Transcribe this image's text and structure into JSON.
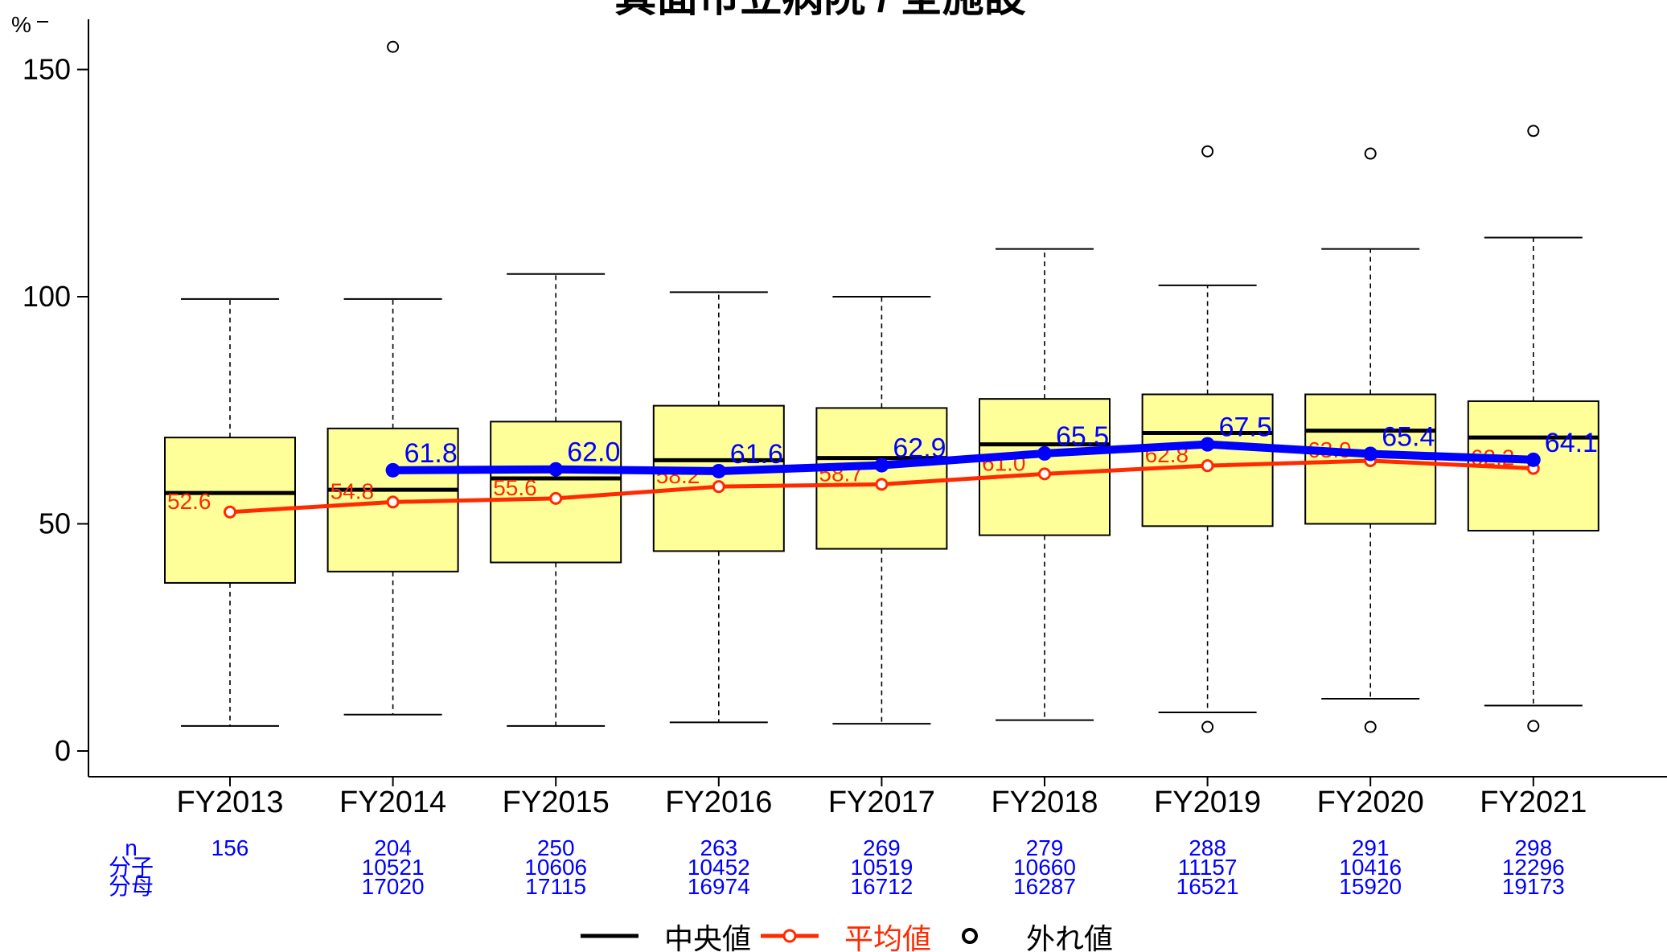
{
  "chart_data": {
    "type": "box",
    "title": "箕面市立病院 / 全施設",
    "ylabel": "%",
    "ylim": [
      -5,
      160
    ],
    "yticks": [
      0,
      50,
      100,
      150
    ],
    "grid": false,
    "legend_position": "bottom",
    "categories": [
      "FY2013",
      "FY2014",
      "FY2015",
      "FY2016",
      "FY2017",
      "FY2018",
      "FY2019",
      "FY2020",
      "FY2021"
    ],
    "boxes": [
      {
        "q1": 37.0,
        "median": 56.8,
        "q3": 69.0,
        "whisker_low": 5.5,
        "whisker_high": 99.5,
        "outliers": []
      },
      {
        "q1": 39.5,
        "median": 57.5,
        "q3": 71.0,
        "whisker_low": 8.0,
        "whisker_high": 99.5,
        "outliers": [
          155.0
        ]
      },
      {
        "q1": 41.5,
        "median": 60.0,
        "q3": 72.5,
        "whisker_low": 5.5,
        "whisker_high": 105.0,
        "outliers": []
      },
      {
        "q1": 44.0,
        "median": 64.0,
        "q3": 76.0,
        "whisker_low": 6.3,
        "whisker_high": 101.0,
        "outliers": []
      },
      {
        "q1": 44.5,
        "median": 64.5,
        "q3": 75.5,
        "whisker_low": 6.0,
        "whisker_high": 100.0,
        "outliers": []
      },
      {
        "q1": 47.5,
        "median": 67.5,
        "q3": 77.5,
        "whisker_low": 6.8,
        "whisker_high": 110.5,
        "outliers": []
      },
      {
        "q1": 49.5,
        "median": 70.0,
        "q3": 78.5,
        "whisker_low": 8.5,
        "whisker_high": 102.5,
        "outliers": [
          132.0,
          5.3
        ]
      },
      {
        "q1": 50.0,
        "median": 70.5,
        "q3": 78.5,
        "whisker_low": 11.5,
        "whisker_high": 110.5,
        "outliers": [
          131.5,
          5.3
        ]
      },
      {
        "q1": 48.5,
        "median": 69.0,
        "q3": 77.0,
        "whisker_low": 10.0,
        "whisker_high": 113.0,
        "outliers": [
          136.5,
          5.5
        ]
      }
    ],
    "series": [
      {
        "name": "平均値",
        "color": "#ff2a00",
        "values": [
          52.6,
          54.8,
          55.6,
          58.2,
          58.7,
          61.0,
          62.8,
          63.9,
          62.2
        ],
        "labels": [
          "52.6",
          "54.8",
          "55.6",
          "58.2",
          "58.7",
          "61.0",
          "62.8",
          "63.9",
          "62.2"
        ]
      },
      {
        "name": "",
        "color": "#0000ff",
        "values": [
          null,
          61.8,
          62.0,
          61.6,
          62.9,
          65.5,
          67.5,
          65.4,
          64.1
        ],
        "labels": [
          "",
          "61.8",
          "62.0",
          "61.6",
          "62.9",
          "65.5",
          "67.5",
          "65.4",
          "64.1"
        ]
      }
    ],
    "table": {
      "row_labels": [
        "n",
        "分子",
        "分母"
      ],
      "columns": [
        {
          "n": "156",
          "numerator": "",
          "denominator": ""
        },
        {
          "n": "204",
          "numerator": "10521",
          "denominator": "17020"
        },
        {
          "n": "250",
          "numerator": "10606",
          "denominator": "17115"
        },
        {
          "n": "263",
          "numerator": "10452",
          "denominator": "16974"
        },
        {
          "n": "269",
          "numerator": "10519",
          "denominator": "16712"
        },
        {
          "n": "279",
          "numerator": "10660",
          "denominator": "16287"
        },
        {
          "n": "288",
          "numerator": "11157",
          "denominator": "16521"
        },
        {
          "n": "291",
          "numerator": "10416",
          "denominator": "15920"
        },
        {
          "n": "298",
          "numerator": "12296",
          "denominator": "19173"
        }
      ]
    },
    "legend": [
      {
        "label": "中央値",
        "color": "#000000"
      },
      {
        "label": "平均値",
        "color": "#ff2a00"
      },
      {
        "label": "外れ値",
        "color": "#000000"
      }
    ]
  }
}
